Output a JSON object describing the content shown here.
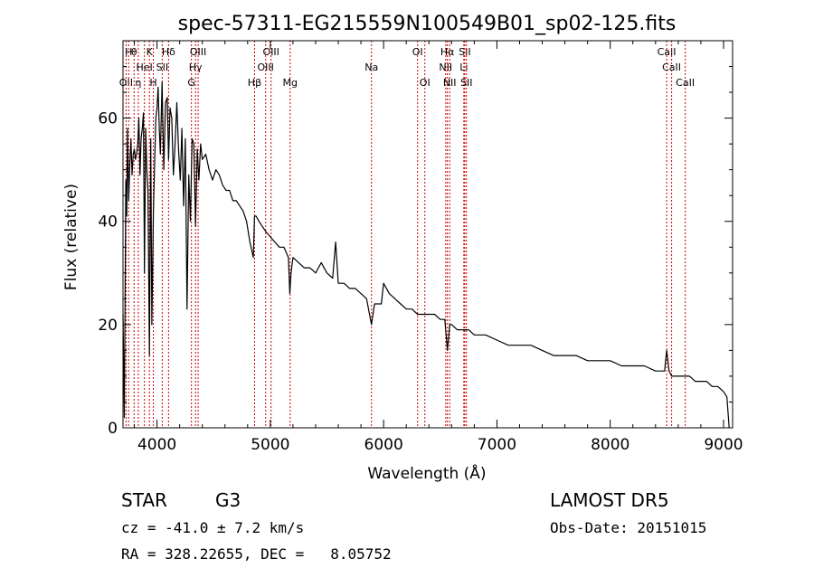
{
  "chart_data": {
    "type": "line",
    "title": "spec-57311-EG215559N100549B01_sp02-125.fits",
    "xlabel": "Wavelength (Å)",
    "ylabel": "Flux (relative)",
    "xlim": [
      3700,
      9080
    ],
    "ylim": [
      0,
      75
    ],
    "xticks": [
      4000,
      5000,
      6000,
      7000,
      8000,
      9000
    ],
    "yticks": [
      0,
      20,
      40,
      60
    ],
    "grid": false,
    "line_color": "#000000",
    "marker_color": "#cc0000",
    "series": [
      {
        "x": [
          3700,
          3712,
          3725,
          3733,
          3740,
          3750,
          3760,
          3770,
          3780,
          3790,
          3800,
          3810,
          3820,
          3830,
          3840,
          3850,
          3860,
          3870,
          3880,
          3889,
          3900,
          3910,
          3920,
          3933,
          3945,
          3955,
          3968,
          3980,
          3990,
          4000,
          4010,
          4020,
          4030,
          4045,
          4060,
          4075,
          4090,
          4102,
          4115,
          4130,
          4145,
          4160,
          4175,
          4190,
          4205,
          4220,
          4235,
          4250,
          4265,
          4280,
          4295,
          4310,
          4325,
          4340,
          4355,
          4370,
          4385,
          4400,
          4430,
          4460,
          4490,
          4520,
          4550,
          4580,
          4610,
          4640,
          4670,
          4700,
          4730,
          4760,
          4790,
          4820,
          4850,
          4861,
          4875,
          4900,
          4930,
          4960,
          5000,
          5040,
          5080,
          5120,
          5160,
          5172,
          5183,
          5200,
          5250,
          5300,
          5350,
          5400,
          5450,
          5500,
          5550,
          5577,
          5600,
          5650,
          5700,
          5750,
          5800,
          5850,
          5893,
          5920,
          5950,
          5980,
          6000,
          6050,
          6100,
          6150,
          6200,
          6250,
          6300,
          6350,
          6400,
          6450,
          6500,
          6540,
          6563,
          6583,
          6600,
          6650,
          6700,
          6750,
          6800,
          6900,
          7000,
          7100,
          7200,
          7300,
          7400,
          7500,
          7600,
          7700,
          7800,
          7900,
          8000,
          8100,
          8200,
          8300,
          8400,
          8480,
          8498,
          8520,
          8542,
          8570,
          8620,
          8662,
          8700,
          8750,
          8800,
          8850,
          8900,
          8950,
          9000,
          9030,
          9050
        ],
        "values": [
          22,
          2,
          48,
          41,
          58,
          44,
          51,
          56,
          49,
          53,
          54,
          52,
          53,
          55,
          60,
          49,
          56,
          58,
          61,
          30,
          58,
          50,
          46,
          14,
          56,
          20,
          42,
          52,
          60,
          62,
          66,
          58,
          53,
          67,
          50,
          63,
          64,
          52,
          62,
          60,
          49,
          55,
          63,
          54,
          48,
          58,
          43,
          56,
          23,
          49,
          40,
          56,
          55,
          39,
          54,
          48,
          55,
          52,
          53,
          50,
          48,
          50,
          49,
          47,
          46,
          46,
          44,
          44,
          43,
          42,
          40,
          36,
          33,
          41,
          41,
          40,
          39,
          38,
          37,
          36,
          35,
          35,
          33,
          26,
          30,
          33,
          32,
          31,
          31,
          30,
          32,
          30,
          29,
          36,
          28,
          28,
          27,
          27,
          26,
          25,
          20,
          24,
          24,
          24,
          28,
          26,
          25,
          24,
          23,
          23,
          22,
          22,
          22,
          22,
          21,
          21,
          15,
          20,
          20,
          19,
          19,
          19,
          18,
          18,
          17,
          16,
          16,
          16,
          15,
          14,
          14,
          14,
          13,
          13,
          13,
          12,
          12,
          12,
          11,
          11,
          15,
          11,
          10,
          10,
          10,
          10,
          10,
          9,
          9,
          9,
          8,
          8,
          7,
          6,
          0
        ]
      }
    ],
    "line_markers": [
      {
        "wavelength": 3727,
        "label": "OII",
        "row": 3
      },
      {
        "wavelength": 3750,
        "label": "H",
        "row": 1
      },
      {
        "wavelength": 3798,
        "label": "θ",
        "row": 1
      },
      {
        "wavelength": 3835,
        "label": "η",
        "row": 3
      },
      {
        "wavelength": 3889,
        "label": "HeI",
        "row": 2
      },
      {
        "wavelength": 3933,
        "label": "K",
        "row": 1
      },
      {
        "wavelength": 3968,
        "label": "H",
        "row": 3
      },
      {
        "wavelength": 4046,
        "label": "SII",
        "row": 2
      },
      {
        "wavelength": 4102,
        "label": "Hδ",
        "row": 1
      },
      {
        "wavelength": 4304,
        "label": "G",
        "row": 3
      },
      {
        "wavelength": 4340,
        "label": "Hγ",
        "row": 2
      },
      {
        "wavelength": 4363,
        "label": "OIII",
        "row": 1
      },
      {
        "wavelength": 4861,
        "label": "Hβ",
        "row": 3
      },
      {
        "wavelength": 4959,
        "label": "OIII",
        "row": 2
      },
      {
        "wavelength": 5007,
        "label": "OIII",
        "row": 1
      },
      {
        "wavelength": 5175,
        "label": "Mg",
        "row": 3
      },
      {
        "wavelength": 5893,
        "label": "Na",
        "row": 2
      },
      {
        "wavelength": 6300,
        "label": "OI",
        "row": 1
      },
      {
        "wavelength": 6364,
        "label": "OI",
        "row": 3
      },
      {
        "wavelength": 6548,
        "label": "NII",
        "row": 2
      },
      {
        "wavelength": 6563,
        "label": "Hα",
        "row": 1
      },
      {
        "wavelength": 6583,
        "label": "NII",
        "row": 3
      },
      {
        "wavelength": 6708,
        "label": "Li",
        "row": 2
      },
      {
        "wavelength": 6716,
        "label": "SII",
        "row": 1
      },
      {
        "wavelength": 6731,
        "label": "SII",
        "row": 3
      },
      {
        "wavelength": 8498,
        "label": "CaII",
        "row": 1
      },
      {
        "wavelength": 8542,
        "label": "CaII",
        "row": 2
      },
      {
        "wavelength": 8662,
        "label": "CaII",
        "row": 3
      }
    ]
  },
  "info": {
    "class_label": "STAR",
    "subclass_label": "G3",
    "survey_label": "LAMOST DR5",
    "cz_text": "cz = -41.0 ± 7.2 km/s",
    "obs_date_text": "Obs-Date: 20151015",
    "coords_text": "RA = 328.22655, DEC =   8.05752"
  }
}
